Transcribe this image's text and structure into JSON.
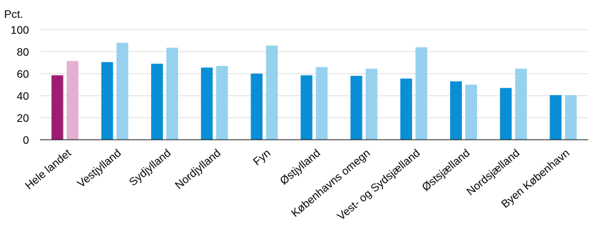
{
  "chart_data": {
    "type": "bar",
    "y_unit_label": "Pct.",
    "ylim": [
      0,
      100
    ],
    "yticks": [
      0,
      20,
      40,
      60,
      80,
      100
    ],
    "grid": true,
    "categories": [
      "Hele landet",
      "Vestjylland",
      "Sydjylland",
      "Nordjylland",
      "Fyn",
      "Østjylland",
      "Københavns omegn",
      "Vest- og Sydsjælland",
      "Østsjælland",
      "Nordsjælland",
      "Byen København"
    ],
    "series": [
      {
        "values": [
          58.5,
          70.5,
          69,
          65.5,
          60,
          58.5,
          58,
          55.5,
          53,
          47,
          40.5
        ]
      },
      {
        "values": [
          71.5,
          88,
          83.5,
          67,
          85.5,
          66,
          64.5,
          84,
          50,
          64.5,
          40.5
        ]
      }
    ],
    "colors": {
      "highlight": [
        "#9b1f6e",
        "#e3b0d4"
      ],
      "default": [
        "#0a8fd6",
        "#96d1ee"
      ]
    }
  }
}
